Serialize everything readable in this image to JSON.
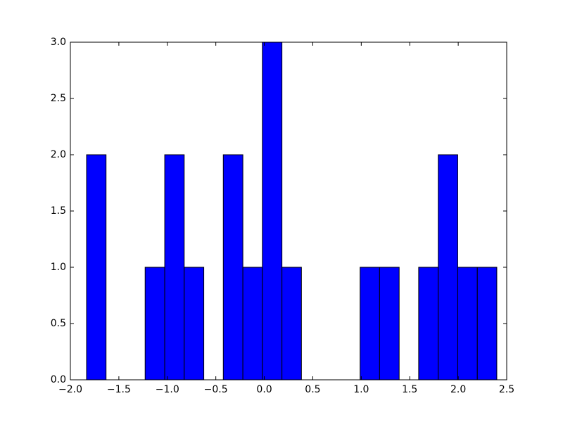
{
  "chart_data": {
    "type": "histogram",
    "bins": [
      -1.833,
      -1.632,
      -1.43,
      -1.229,
      -1.027,
      -0.826,
      -0.624,
      -0.423,
      -0.221,
      -0.02,
      0.182,
      0.383,
      0.585,
      0.786,
      0.988,
      1.189,
      1.391,
      1.592,
      1.794,
      1.995,
      2.197,
      2.398
    ],
    "values": [
      2,
      0,
      0,
      1,
      2,
      1,
      0,
      2,
      1,
      3,
      1,
      0,
      0,
      0,
      1,
      1,
      0,
      1,
      2,
      1,
      1
    ],
    "color": "#0000ff",
    "xlim": [
      -2.0,
      2.5
    ],
    "xticks": [
      {
        "value": -2.0,
        "label": "−2.0"
      },
      {
        "value": -1.5,
        "label": "−1.5"
      },
      {
        "value": -1.0,
        "label": "−1.0"
      },
      {
        "value": -0.5,
        "label": "−0.5"
      },
      {
        "value": 0.0,
        "label": "0.0"
      },
      0.5,
      {
        "value": 1.0,
        "label": "1.0"
      },
      1.5,
      {
        "value": 2.0,
        "label": "2.0"
      },
      2.5
    ],
    "ylim": [
      0.0,
      3.0
    ],
    "yticks": [
      {
        "value": 0.0,
        "label": "0.0"
      },
      0.5,
      {
        "value": 1.0,
        "label": "1.0"
      },
      1.5,
      {
        "value": 2.0,
        "label": "2.0"
      },
      2.5,
      {
        "value": 3.0,
        "label": "3.0"
      }
    ],
    "grid": false
  }
}
